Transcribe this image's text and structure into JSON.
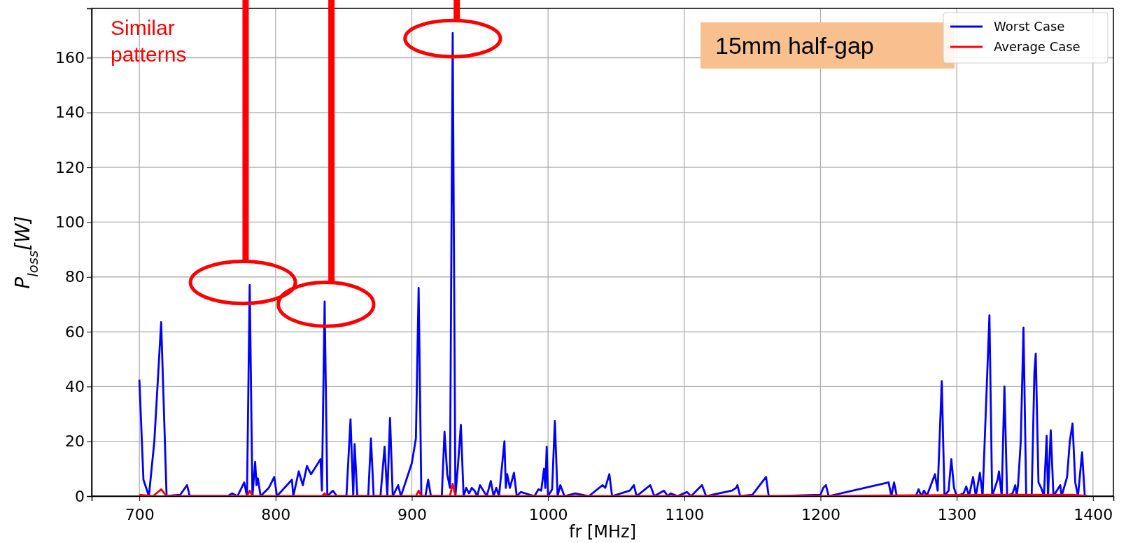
{
  "chart_data": {
    "type": "line",
    "xlabel": "fr [MHz]",
    "ylabel": "P$_{loss}$[W]",
    "xlim": [
      665,
      1415
    ],
    "ylim": [
      0,
      178
    ],
    "xticks": [
      700,
      800,
      900,
      1000,
      1100,
      1200,
      1300,
      1400
    ],
    "yticks": [
      0,
      20,
      40,
      60,
      80,
      100,
      120,
      140,
      160
    ],
    "grid": true,
    "legend": "top right",
    "marker": "none",
    "line_style": "solid",
    "annotations": [
      "Similar patterns",
      "15mm half-gap"
    ],
    "series": [
      {
        "name": "Worst Case",
        "color": "#0000ff",
        "x": [
          700,
          703,
          707,
          711,
          716,
          720,
          730,
          735,
          737,
          765,
          768,
          772,
          777,
          779,
          781,
          783,
          785,
          786,
          787,
          789,
          795,
          799,
          801,
          812,
          813,
          817,
          820,
          823,
          826,
          833,
          834,
          836,
          838,
          842,
          845,
          852,
          855,
          857,
          858,
          860,
          868,
          870,
          872,
          877,
          880,
          882,
          884,
          886,
          890,
          892,
          900,
          903,
          905,
          907,
          910,
          912,
          914,
          922,
          924,
          926,
          928,
          930,
          932,
          934,
          936,
          938,
          940,
          942,
          944,
          946,
          948,
          950,
          955,
          958,
          960,
          962,
          964,
          968,
          969,
          970,
          972,
          975,
          977,
          980,
          990,
          993,
          995,
          997,
          998,
          999,
          1000,
          1003,
          1005,
          1007,
          1009,
          1012,
          1020,
          1030,
          1040,
          1042,
          1045,
          1047,
          1060,
          1063,
          1065,
          1075,
          1078,
          1085,
          1088,
          1090,
          1095,
          1102,
          1105,
          1113,
          1116,
          1135,
          1138,
          1139,
          1141,
          1150,
          1160,
          1162,
          1170,
          1200,
          1202,
          1204,
          1206,
          1250,
          1252,
          1254,
          1256,
          1270,
          1272,
          1274,
          1276,
          1278,
          1284,
          1286,
          1289,
          1291,
          1294,
          1296,
          1298,
          1300,
          1305,
          1307,
          1309,
          1312,
          1314,
          1317,
          1319,
          1324,
          1326,
          1328,
          1330,
          1331,
          1333,
          1335,
          1337,
          1341,
          1343,
          1344,
          1345,
          1347,
          1349,
          1351,
          1355,
          1357,
          1358,
          1360,
          1362,
          1364,
          1366,
          1367,
          1369,
          1371,
          1376,
          1377,
          1381,
          1383,
          1385,
          1387,
          1389,
          1392,
          1394,
          1396
        ],
        "values": [
          42.5,
          6,
          0,
          20,
          63.5,
          0,
          0.5,
          4,
          0,
          0,
          1,
          0,
          5,
          0,
          77,
          0,
          12.5,
          4,
          6.5,
          0,
          3,
          7,
          0,
          6,
          0,
          9,
          4,
          11,
          8,
          13.5,
          2,
          71,
          0,
          2,
          0,
          0,
          28,
          0,
          19,
          0,
          0,
          21,
          0,
          0,
          18,
          0,
          28.5,
          0,
          4,
          0,
          12,
          21,
          76,
          0,
          0,
          6,
          0,
          0,
          23.5,
          8,
          3,
          169,
          0,
          12,
          26,
          0,
          3,
          1,
          3,
          2,
          0,
          4,
          0,
          5.5,
          0,
          3,
          0,
          20,
          3,
          8,
          3,
          8.5,
          0,
          1.5,
          0,
          2.5,
          2,
          10,
          3,
          18,
          0,
          2.5,
          27.5,
          0,
          4,
          0,
          1,
          0,
          4,
          3,
          8,
          0,
          2,
          4,
          0,
          4,
          0,
          2,
          0,
          1,
          0,
          1.5,
          0,
          4,
          0,
          2,
          3,
          4,
          0,
          0.5,
          7,
          0,
          0,
          0.5,
          3,
          4,
          0,
          5,
          0,
          5,
          0,
          0,
          2.5,
          0,
          2,
          0,
          8,
          2,
          42,
          0,
          2,
          13.5,
          3,
          0,
          1,
          3.5,
          0,
          7,
          0,
          8.5,
          0,
          66,
          0,
          3,
          6,
          9,
          0,
          40,
          0,
          1,
          4,
          0,
          4,
          20,
          61.5,
          0,
          0,
          45,
          52,
          5,
          3,
          0,
          22,
          0,
          24,
          0,
          4,
          0,
          7,
          20,
          26.5,
          5,
          0,
          16,
          0,
          0
        ]
      },
      {
        "name": "Average Case",
        "color": "#ff0000",
        "x": [
          700,
          710,
          716,
          720,
          760,
          779,
          781,
          783,
          834,
          836,
          838,
          903,
          905,
          907,
          928,
          930,
          932,
          1000,
          1200,
          1324,
          1349,
          1385,
          1396
        ],
        "values": [
          0.5,
          0,
          2.5,
          0,
          0,
          0,
          2,
          0,
          0,
          1,
          0,
          0,
          2,
          0,
          0,
          4.5,
          0,
          0,
          0,
          0.5,
          0.5,
          0.5,
          0
        ]
      }
    ]
  }
}
